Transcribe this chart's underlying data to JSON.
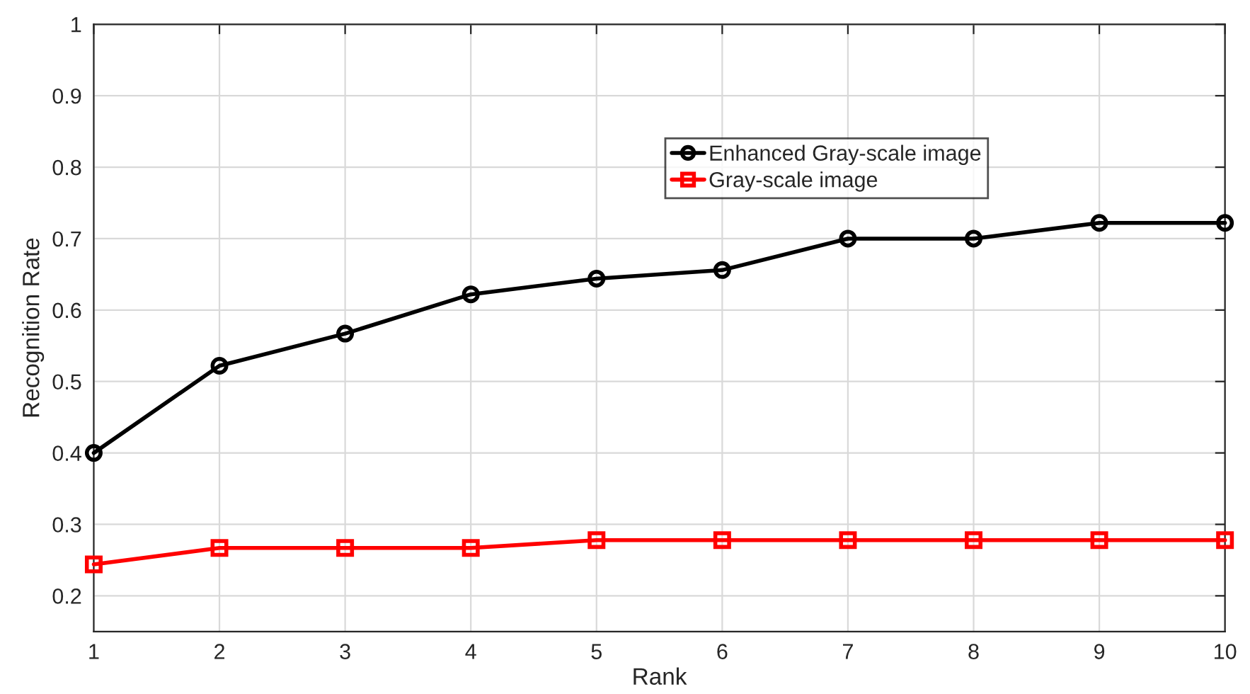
{
  "chart_data": {
    "type": "line",
    "xlabel": "Rank",
    "ylabel": "Recognition Rate",
    "x": [
      1,
      2,
      3,
      4,
      5,
      6,
      7,
      8,
      9,
      10
    ],
    "series": [
      {
        "name": "Enhanced Gray-scale image",
        "color": "#000000",
        "marker": "circle",
        "values": [
          0.4,
          0.522,
          0.567,
          0.622,
          0.644,
          0.656,
          0.7,
          0.7,
          0.722,
          0.722
        ]
      },
      {
        "name": "Gray-scale image",
        "color": "#ff0000",
        "marker": "square",
        "values": [
          0.244,
          0.267,
          0.267,
          0.267,
          0.278,
          0.278,
          0.278,
          0.278,
          0.278,
          0.278
        ]
      }
    ],
    "xlim": [
      1,
      10
    ],
    "xticks": [
      1,
      2,
      3,
      4,
      5,
      6,
      7,
      8,
      9,
      10
    ],
    "ylim": [
      0.15,
      1
    ],
    "yticks": [
      0.2,
      0.3,
      0.4,
      0.5,
      0.6,
      0.7,
      0.8,
      0.9,
      1
    ],
    "grid": true,
    "legend": "top right",
    "line_style": "solid"
  }
}
